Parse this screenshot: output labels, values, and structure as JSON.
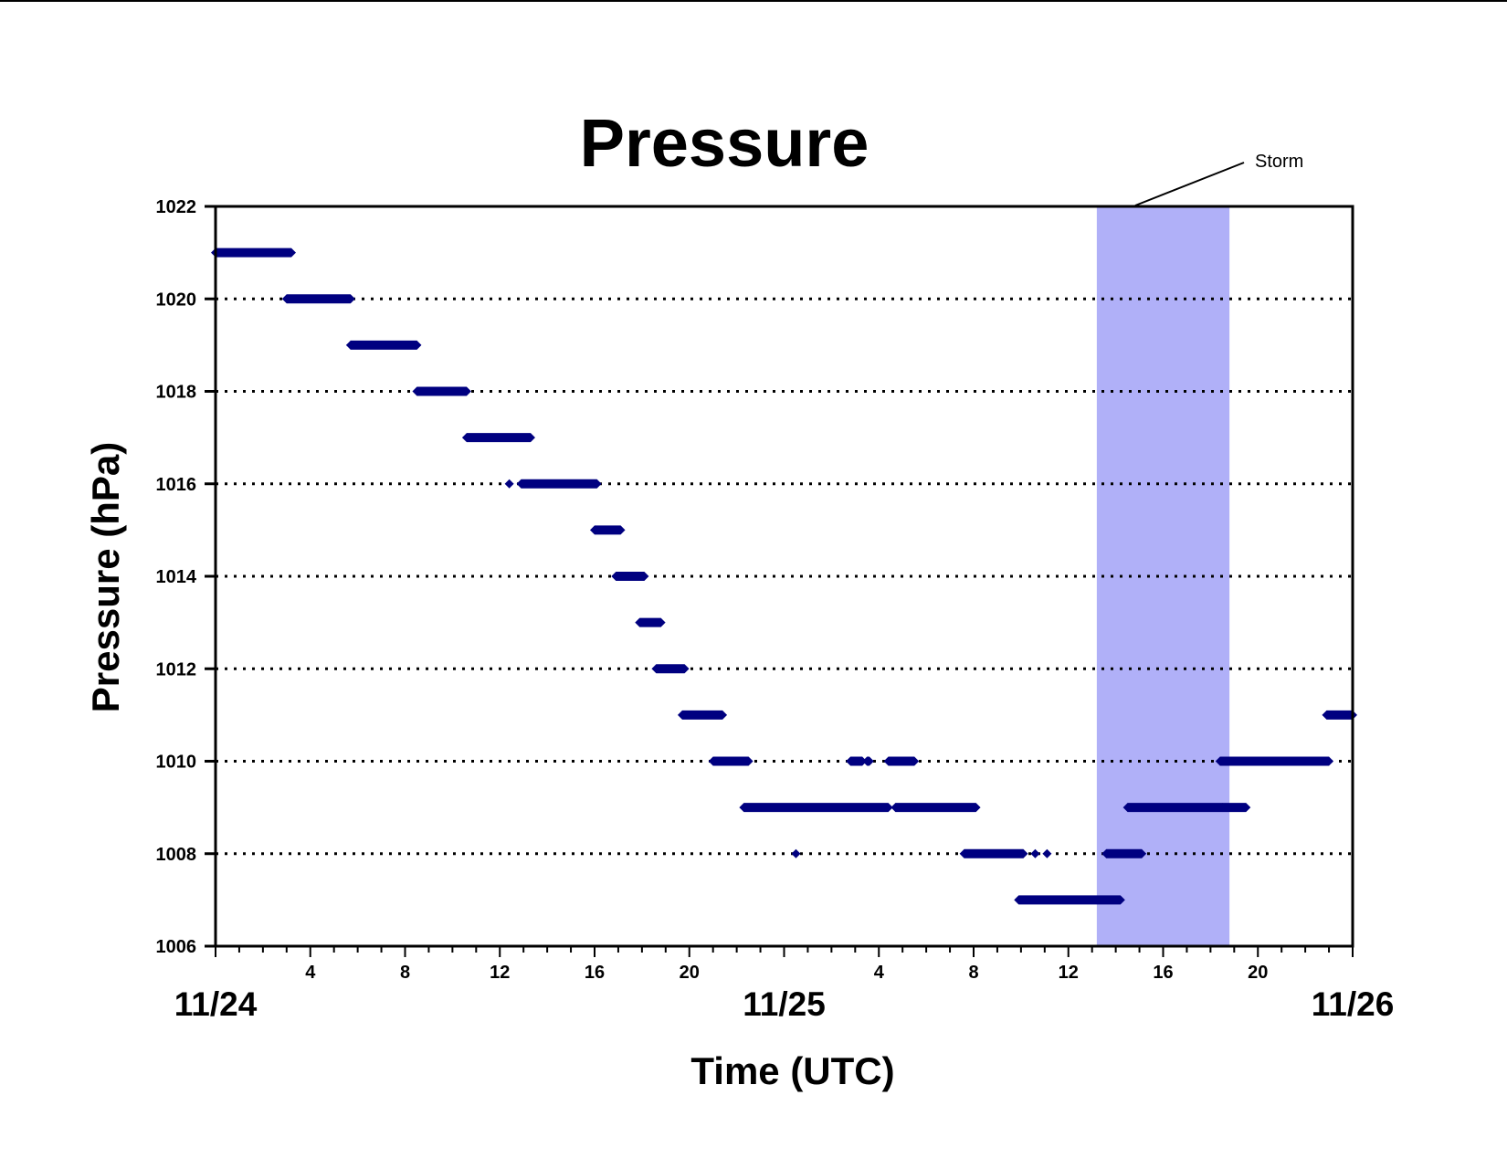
{
  "chart_data": {
    "type": "scatter",
    "title": "Pressure",
    "xlabel": "Time (UTC)",
    "ylabel": "Pressure (hPa)",
    "ylim": [
      1006,
      1022
    ],
    "yticks": [
      "1006",
      "1008",
      "1010",
      "1012",
      "1014",
      "1016",
      "1018",
      "1020",
      "1022"
    ],
    "xlim_hours": [
      0,
      48
    ],
    "xticks_hour_labels": [
      {
        "hour": 4,
        "label": "4"
      },
      {
        "hour": 8,
        "label": "8"
      },
      {
        "hour": 12,
        "label": "12"
      },
      {
        "hour": 16,
        "label": "16"
      },
      {
        "hour": 20,
        "label": "20"
      },
      {
        "hour": 28,
        "label": "4"
      },
      {
        "hour": 32,
        "label": "8"
      },
      {
        "hour": 36,
        "label": "12"
      },
      {
        "hour": 40,
        "label": "16"
      },
      {
        "hour": 44,
        "label": "20"
      }
    ],
    "date_labels": [
      {
        "hour": 0,
        "label": "11/24"
      },
      {
        "hour": 24,
        "label": "11/25"
      },
      {
        "hour": 48,
        "label": "11/26"
      }
    ],
    "grid": "horizontal dotted at 1008, 1010, 1012, 1014, 1016, 1018, 1020",
    "marker_color": "#000080",
    "storm": {
      "label": "Storm",
      "start_hour": 37.2,
      "end_hour": 42.8,
      "color": "#b0b0f8"
    },
    "series": [
      {
        "segments": [
          {
            "pressure": 1021,
            "start": 0.0,
            "end": 3.2
          },
          {
            "pressure": 1020,
            "start": 3.0,
            "end": 5.7
          },
          {
            "pressure": 1019,
            "start": 5.7,
            "end": 8.5
          },
          {
            "pressure": 1018,
            "start": 8.5,
            "end": 10.6
          },
          {
            "pressure": 1017,
            "start": 10.6,
            "end": 13.3
          },
          {
            "pressure": 1016,
            "start": 12.4,
            "end": 12.4
          },
          {
            "pressure": 1016,
            "start": 12.9,
            "end": 16.1
          },
          {
            "pressure": 1015,
            "start": 16.0,
            "end": 17.1
          },
          {
            "pressure": 1014,
            "start": 16.9,
            "end": 18.1
          },
          {
            "pressure": 1013,
            "start": 17.9,
            "end": 18.8
          },
          {
            "pressure": 1012,
            "start": 18.6,
            "end": 19.8
          },
          {
            "pressure": 1011,
            "start": 19.7,
            "end": 21.4
          },
          {
            "pressure": 1010,
            "start": 21.0,
            "end": 22.5
          },
          {
            "pressure": 1010,
            "start": 26.8,
            "end": 27.3
          },
          {
            "pressure": 1010,
            "start": 27.5,
            "end": 27.6
          },
          {
            "pressure": 1010,
            "start": 28.4,
            "end": 29.5
          },
          {
            "pressure": 1009,
            "start": 22.3,
            "end": 28.4
          },
          {
            "pressure": 1009,
            "start": 28.7,
            "end": 32.1
          },
          {
            "pressure": 1008,
            "start": 24.5,
            "end": 24.5
          },
          {
            "pressure": 1008,
            "start": 31.6,
            "end": 34.1
          },
          {
            "pressure": 1008,
            "start": 34.6,
            "end": 34.6
          },
          {
            "pressure": 1008,
            "start": 35.1,
            "end": 35.1
          },
          {
            "pressure": 1007,
            "start": 33.9,
            "end": 38.2
          },
          {
            "pressure": 1008,
            "start": 37.6,
            "end": 39.1
          },
          {
            "pressure": 1009,
            "start": 38.5,
            "end": 42.5
          },
          {
            "pressure": 1009,
            "start": 42.5,
            "end": 43.5
          },
          {
            "pressure": 1010,
            "start": 42.4,
            "end": 47.0
          },
          {
            "pressure": 1011,
            "start": 46.9,
            "end": 48.0
          }
        ]
      }
    ]
  }
}
